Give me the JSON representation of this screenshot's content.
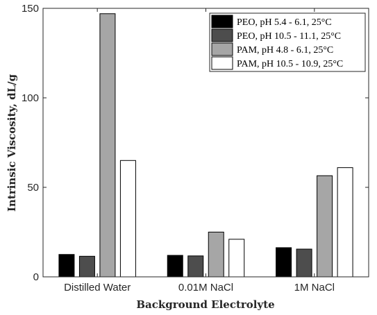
{
  "chart_data": {
    "type": "bar",
    "xlabel": "Background Electrolyte",
    "ylabel": "Intrinsic Viscosity, dL/g",
    "ylim": [
      0,
      150
    ],
    "yticks": [
      0,
      50,
      100,
      150
    ],
    "grid": false,
    "legend_position": "top-right",
    "categories": [
      "Distilled Water",
      "0.01M NaCl",
      "1M NaCl"
    ],
    "series": [
      {
        "name": "PEO, pH 5.4 - 6.1, 25°C",
        "color": "#000000",
        "values": [
          12.5,
          12.0,
          16.3
        ]
      },
      {
        "name": "PEO, pH 10.5 - 11.1, 25°C",
        "color": "#4d4d4d",
        "values": [
          11.5,
          11.7,
          15.5
        ]
      },
      {
        "name": "PAM, pH 4.8 - 6.1, 25°C",
        "color": "#a6a6a6",
        "values": [
          147.0,
          25.0,
          56.5
        ]
      },
      {
        "name": "PAM, pH 10.5 - 10.9, 25°C",
        "color": "#ffffff",
        "values": [
          65.0,
          21.0,
          61.0
        ]
      }
    ]
  }
}
